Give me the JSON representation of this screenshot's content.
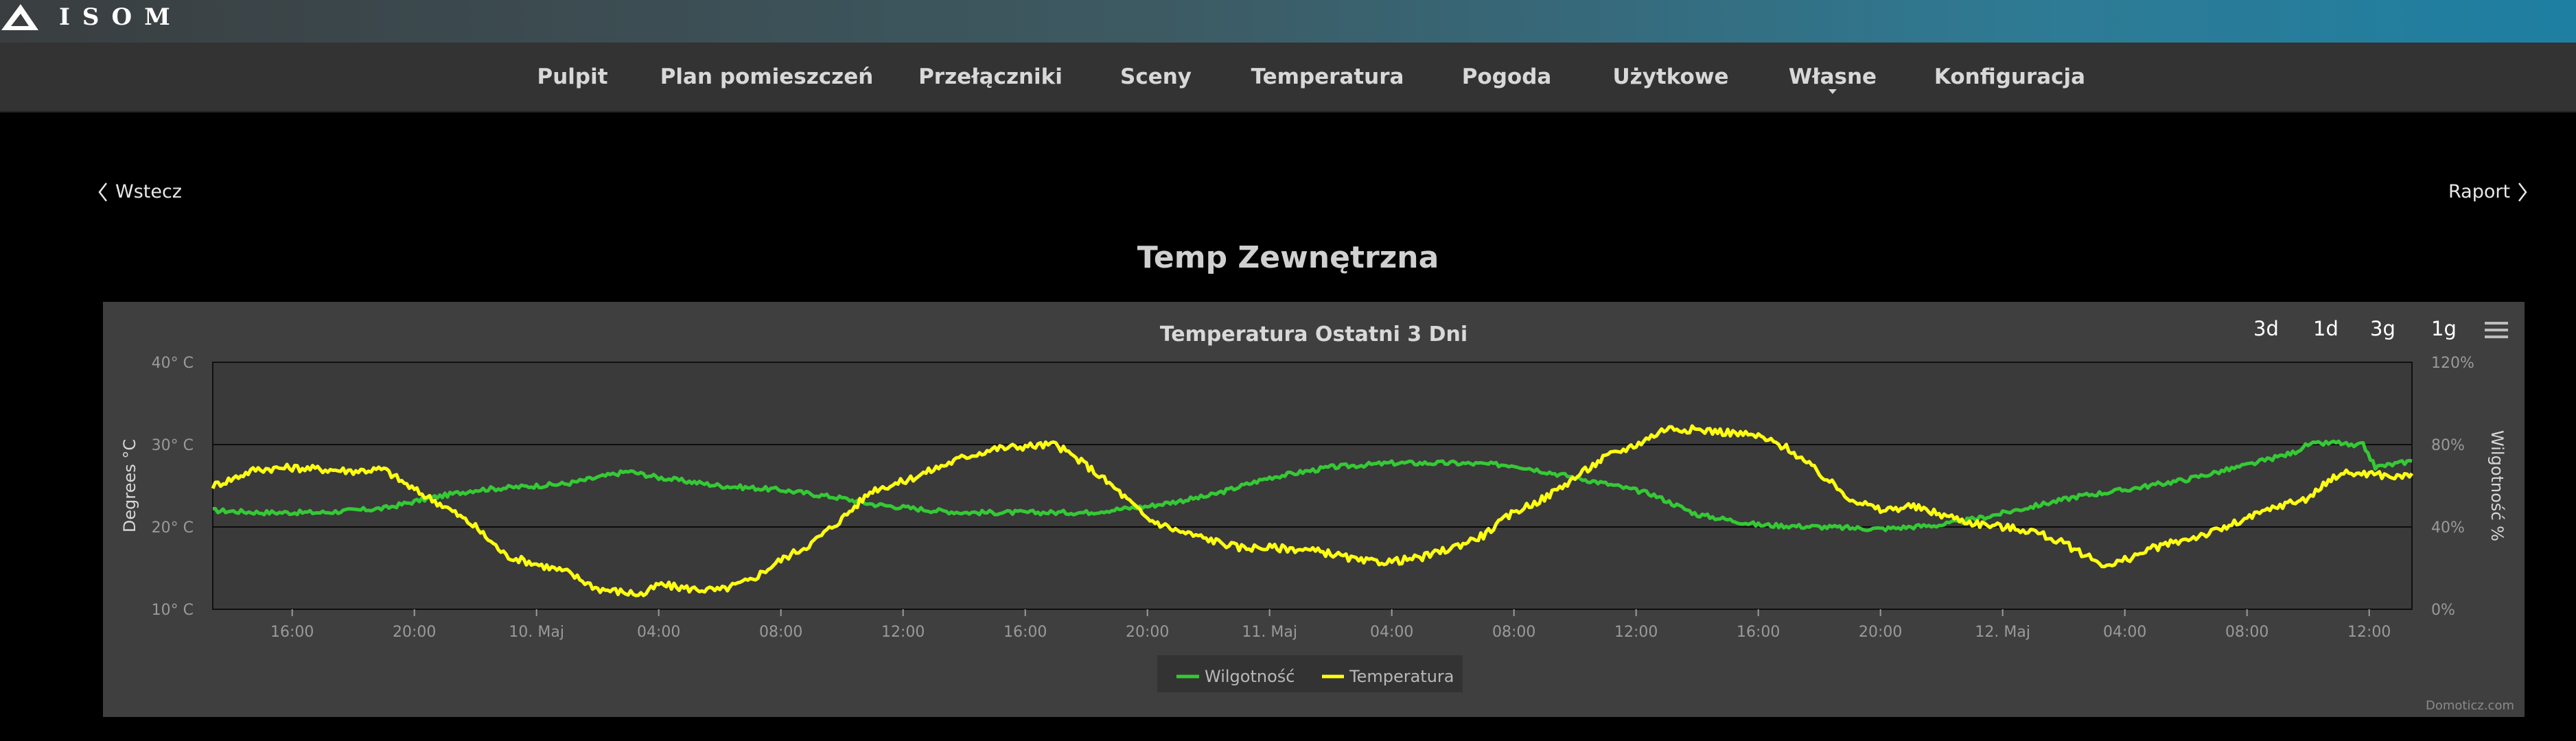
{
  "brand": {
    "logo_text": "ISOM",
    "logo_icon": "isom-logo"
  },
  "nav": {
    "items": [
      {
        "label": "Pulpit"
      },
      {
        "label": "Plan pomieszczeń"
      },
      {
        "label": "Przełączniki"
      },
      {
        "label": "Sceny"
      },
      {
        "label": "Temperatura"
      },
      {
        "label": "Pogoda"
      },
      {
        "label": "Użytkowe"
      },
      {
        "label": "Własne",
        "has_dropdown": true
      },
      {
        "label": "Konfiguracja"
      }
    ]
  },
  "back_label": "Wstecz",
  "report_label": "Raport",
  "page_title": "Temp Zewnętrzna",
  "range_buttons": [
    "3d",
    "1d",
    "3g",
    "1g"
  ],
  "credit": "Domoticz.com",
  "colors": {
    "humidity": "#35c935",
    "temperature": "#ffff11",
    "panel": "#3f3f3f",
    "plot": "#3a3a3a"
  },
  "chart_data": {
    "type": "line",
    "title": "Temperatura Ostatni 3 Dni",
    "grid": true,
    "legend_position": "bottom-center",
    "x_unit": "hours since 9 May 00:00",
    "xlim": [
      13.4,
      85.4
    ],
    "x_ticks": [
      {
        "x": 16,
        "label": "16:00"
      },
      {
        "x": 20,
        "label": "20:00"
      },
      {
        "x": 24,
        "label": "10. Maj"
      },
      {
        "x": 28,
        "label": "04:00"
      },
      {
        "x": 32,
        "label": "08:00"
      },
      {
        "x": 36,
        "label": "12:00"
      },
      {
        "x": 40,
        "label": "16:00"
      },
      {
        "x": 44,
        "label": "20:00"
      },
      {
        "x": 48,
        "label": "11. Maj"
      },
      {
        "x": 52,
        "label": "04:00"
      },
      {
        "x": 56,
        "label": "08:00"
      },
      {
        "x": 60,
        "label": "12:00"
      },
      {
        "x": 64,
        "label": "16:00"
      },
      {
        "x": 68,
        "label": "20:00"
      },
      {
        "x": 72,
        "label": "12. Maj"
      },
      {
        "x": 76,
        "label": "04:00"
      },
      {
        "x": 80,
        "label": "08:00"
      },
      {
        "x": 84,
        "label": "12:00"
      }
    ],
    "y_left": {
      "label": "Degrees °C",
      "ylim": [
        10,
        40
      ],
      "ticks": [
        10,
        20,
        30,
        40
      ],
      "tick_suffix": "° C"
    },
    "y_right": {
      "label": "Wilgotność %",
      "ylim": [
        0,
        120
      ],
      "ticks": [
        0,
        40,
        80,
        120
      ],
      "tick_suffix": "%"
    },
    "series": [
      {
        "name": "Wilgotność",
        "axis": "right",
        "color": "#35c935",
        "points": [
          [
            13.4,
            48
          ],
          [
            15,
            47
          ],
          [
            17,
            47
          ],
          [
            19,
            49
          ],
          [
            20.5,
            54
          ],
          [
            22,
            58
          ],
          [
            24,
            60
          ],
          [
            25,
            61
          ],
          [
            26,
            64
          ],
          [
            27,
            67
          ],
          [
            28,
            64
          ],
          [
            30,
            60
          ],
          [
            32,
            58
          ],
          [
            34,
            54
          ],
          [
            35,
            51
          ],
          [
            37,
            48
          ],
          [
            38,
            47
          ],
          [
            40,
            47
          ],
          [
            42,
            47
          ],
          [
            44,
            50
          ],
          [
            46,
            55
          ],
          [
            48,
            64
          ],
          [
            50,
            69
          ],
          [
            52,
            71
          ],
          [
            54,
            71
          ],
          [
            56,
            70
          ],
          [
            57,
            67
          ],
          [
            59,
            61
          ],
          [
            60.5,
            56
          ],
          [
            62,
            46
          ],
          [
            64,
            41
          ],
          [
            66,
            40
          ],
          [
            68,
            39
          ],
          [
            70,
            41
          ],
          [
            71.5,
            45
          ],
          [
            73,
            50
          ],
          [
            74.5,
            55
          ],
          [
            76,
            58
          ],
          [
            78,
            63
          ],
          [
            80,
            70
          ],
          [
            81.5,
            76
          ],
          [
            82,
            80
          ],
          [
            83,
            81
          ],
          [
            83.5,
            79
          ],
          [
            83.8,
            80
          ],
          [
            84.2,
            69
          ],
          [
            85,
            71
          ],
          [
            85.4,
            72
          ]
        ]
      },
      {
        "name": "Temperatura",
        "axis": "left",
        "color": "#ffff11",
        "points": [
          [
            13.4,
            25
          ],
          [
            14,
            25.8
          ],
          [
            14.8,
            27
          ],
          [
            16,
            27.2
          ],
          [
            17,
            27
          ],
          [
            18,
            26.8
          ],
          [
            19,
            27
          ],
          [
            20,
            24.5
          ],
          [
            21,
            22.5
          ],
          [
            22,
            20
          ],
          [
            23,
            16.5
          ],
          [
            24,
            15.5
          ],
          [
            25,
            14.5
          ],
          [
            26,
            12.5
          ],
          [
            27,
            12
          ],
          [
            27.5,
            11.8
          ],
          [
            28,
            13
          ],
          [
            29,
            12.5
          ],
          [
            30,
            12.3
          ],
          [
            31,
            13.5
          ],
          [
            32,
            16
          ],
          [
            33,
            18
          ],
          [
            34,
            21
          ],
          [
            35,
            24.5
          ],
          [
            36,
            25.5
          ],
          [
            37,
            27
          ],
          [
            38,
            28.5
          ],
          [
            39,
            29.5
          ],
          [
            40,
            29.8
          ],
          [
            41,
            30
          ],
          [
            42,
            27.5
          ],
          [
            43,
            24.5
          ],
          [
            44,
            21
          ],
          [
            45,
            19.5
          ],
          [
            46,
            18.5
          ],
          [
            47,
            17.5
          ],
          [
            48,
            17.5
          ],
          [
            49,
            17.3
          ],
          [
            50,
            16.8
          ],
          [
            51,
            15.8
          ],
          [
            52,
            15.8
          ],
          [
            53,
            16.3
          ],
          [
            54,
            17.5
          ],
          [
            55,
            19
          ],
          [
            56,
            21.8
          ],
          [
            57,
            23.5
          ],
          [
            58,
            26
          ],
          [
            59,
            28.5
          ],
          [
            60,
            30
          ],
          [
            61,
            32
          ],
          [
            62,
            31.8
          ],
          [
            63,
            31.5
          ],
          [
            64,
            31
          ],
          [
            65,
            29.5
          ],
          [
            66,
            26.5
          ],
          [
            67,
            23.5
          ],
          [
            68,
            22
          ],
          [
            69,
            22.5
          ],
          [
            70,
            21.5
          ],
          [
            71,
            20.5
          ],
          [
            72,
            20
          ],
          [
            73,
            19.5
          ],
          [
            74,
            18
          ],
          [
            75,
            16
          ],
          [
            75.5,
            15.2
          ],
          [
            76,
            16
          ],
          [
            77,
            17.5
          ],
          [
            78,
            18.5
          ],
          [
            79,
            19.5
          ],
          [
            80,
            21
          ],
          [
            81,
            22.5
          ],
          [
            82,
            23.5
          ],
          [
            83,
            26.5
          ],
          [
            84,
            26.5
          ],
          [
            85,
            26
          ],
          [
            85.4,
            26.5
          ]
        ]
      }
    ]
  }
}
